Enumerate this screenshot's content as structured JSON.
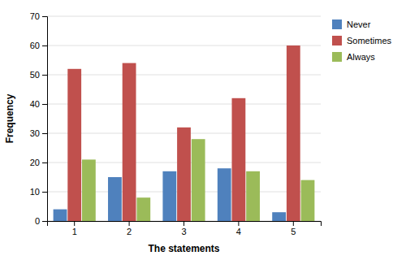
{
  "chart_data": {
    "type": "bar",
    "xlabel": "The statements",
    "ylabel": "Frequency",
    "categories": [
      "1",
      "2",
      "3",
      "4",
      "5"
    ],
    "series": [
      {
        "name": "Never",
        "color": "#4F81BD",
        "values": [
          4,
          15,
          17,
          18,
          3
        ]
      },
      {
        "name": "Sometimes",
        "color": "#C0504D",
        "values": [
          52,
          54,
          32,
          42,
          60
        ]
      },
      {
        "name": "Always",
        "color": "#9BBB59",
        "values": [
          21,
          8,
          28,
          17,
          14
        ]
      }
    ],
    "ylim": [
      0,
      70
    ],
    "yticks": [
      0,
      10,
      20,
      30,
      40,
      50,
      60,
      70
    ],
    "grid": true,
    "legend": "right"
  }
}
